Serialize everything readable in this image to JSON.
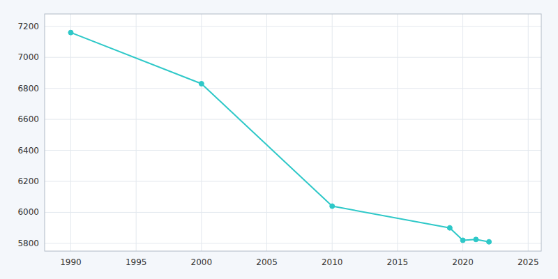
{
  "chart_data": {
    "type": "line",
    "x": [
      1990,
      2000,
      2010,
      2019,
      2020,
      2021,
      2022
    ],
    "values": [
      7160,
      6830,
      6040,
      5900,
      5820,
      5825,
      5810
    ],
    "color": "#2ec8c8",
    "marker": "circle",
    "xlim": [
      1988,
      2026
    ],
    "ylim": [
      5750,
      7280
    ],
    "xticks": [
      1990,
      1995,
      2000,
      2005,
      2010,
      2015,
      2020,
      2025
    ],
    "yticks": [
      5800,
      6000,
      6200,
      6400,
      6600,
      6800,
      7000,
      7200
    ],
    "grid": true
  }
}
